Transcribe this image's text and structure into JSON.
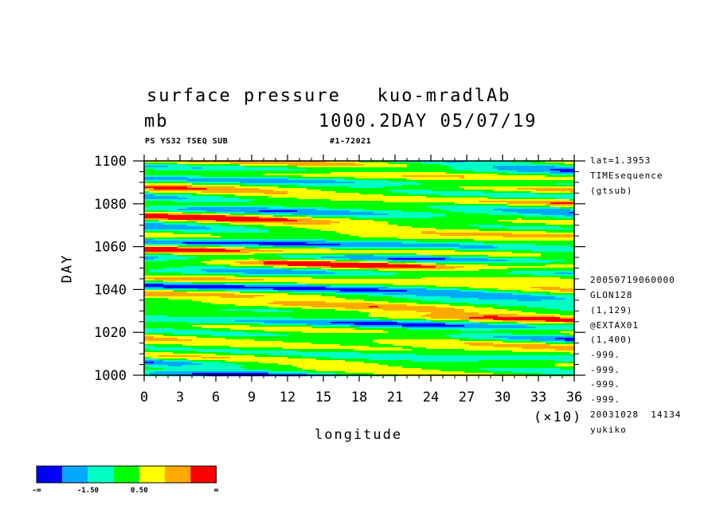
{
  "header": {
    "line1": "surface pressure   kuo-mradlAb",
    "line2_left": "mb",
    "line2_right": "1000.2DAY 05/07/19",
    "sub_left": "PS YS32 TSEQ SUB",
    "sub_right": "#1-72021"
  },
  "side_info": {
    "top": [
      "lat=1.3953",
      "TIMEsequence",
      "(gtsub)"
    ],
    "bottom": [
      "20050719060000",
      "GLON128",
      "(1,129)",
      "@EXTAX01",
      "(1,400)",
      "-999.",
      "-999.",
      "-999.",
      "-999.",
      "20031028  14134",
      "yukiko"
    ]
  },
  "colors": {
    "levels": [
      "#0000ff",
      "#00aaff",
      "#00ffc4",
      "#00ff00",
      "#ffff00",
      "#ffaa00",
      "#ff0000"
    ]
  },
  "colorbar": {
    "labels": [
      "-∞",
      "-1.50",
      "0.50",
      "∞"
    ]
  },
  "chart_data": {
    "type": "heatmap",
    "title": "surface pressure   kuo-mradlAb",
    "xlabel": "longitude",
    "ylabel": "DAY",
    "xlim": [
      0,
      36
    ],
    "ylim": [
      1000,
      1100
    ],
    "x_ticks": [
      0,
      3,
      6,
      9,
      12,
      15,
      18,
      21,
      24,
      27,
      30,
      33,
      36
    ],
    "y_ticks": [
      1000,
      1020,
      1040,
      1060,
      1080,
      1100
    ],
    "x_multiplier_label": "(×10)",
    "color_levels": [
      "-∞ to -1.50",
      "-1.50 to 0.50",
      "0.50 to ∞"
    ],
    "colorbar_labels": [
      "-∞",
      "-1.50",
      "0.50",
      "∞"
    ]
  }
}
